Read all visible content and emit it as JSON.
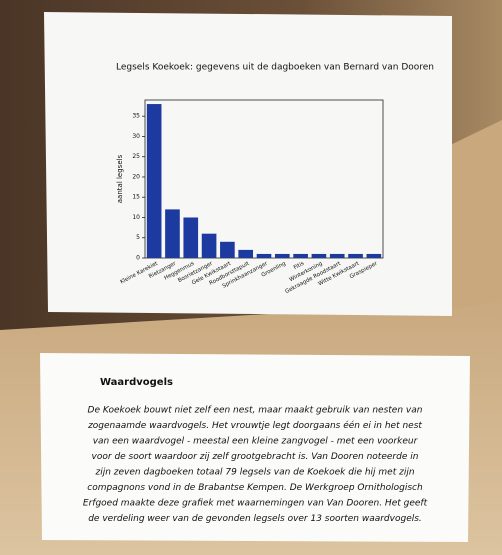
{
  "chart_data": {
    "type": "bar",
    "title": "Legsels Koekoek: gegevens uit de dagboeken van Bernard van Dooren",
    "y_label": "aantal legsels",
    "categories": [
      "Kleine Karekiet",
      "Rietzanger",
      "Heggenmus",
      "Bosrietzanger",
      "Gele Kwikstaart",
      "Roodborsttapuit",
      "Sprinkhaanzanger",
      "Groenling",
      "Fitis",
      "Winterkoning",
      "Gekraagde Roodstaart",
      "Witte Kwikstaart",
      "Graspieper"
    ],
    "values": [
      38,
      12,
      10,
      6,
      4,
      2,
      1,
      1,
      1,
      1,
      1,
      1,
      1
    ],
    "color": "#1c3aa0",
    "ylim": [
      0,
      39
    ],
    "yticks": [
      0,
      5,
      10,
      15,
      20,
      25,
      30,
      35
    ]
  },
  "card": {
    "heading": "Waardvogels",
    "lines": [
      "De Koekoek bouwt niet zelf een nest, maar maakt gebruik van nesten van",
      "zogenaamde waardvogels. Het vrouwtje legt doorgaans één ei in het nest",
      "van een waardvogel - meestal een kleine zangvogel - met een voorkeur",
      "voor de soort waardoor zij zelf grootgebracht is. Van Dooren noteerde in",
      "zijn zeven dagboeken totaal 79 legsels van de Koekoek die hij met zijn",
      "compagnons vond in de Brabantse Kempen. De Werkgroep Ornithologisch",
      "Erfgoed maakte deze grafiek met waarnemingen van Van Dooren. Het geeft",
      "de verdeling weer van de gevonden legsels over 13 soorten waardvogels."
    ]
  }
}
